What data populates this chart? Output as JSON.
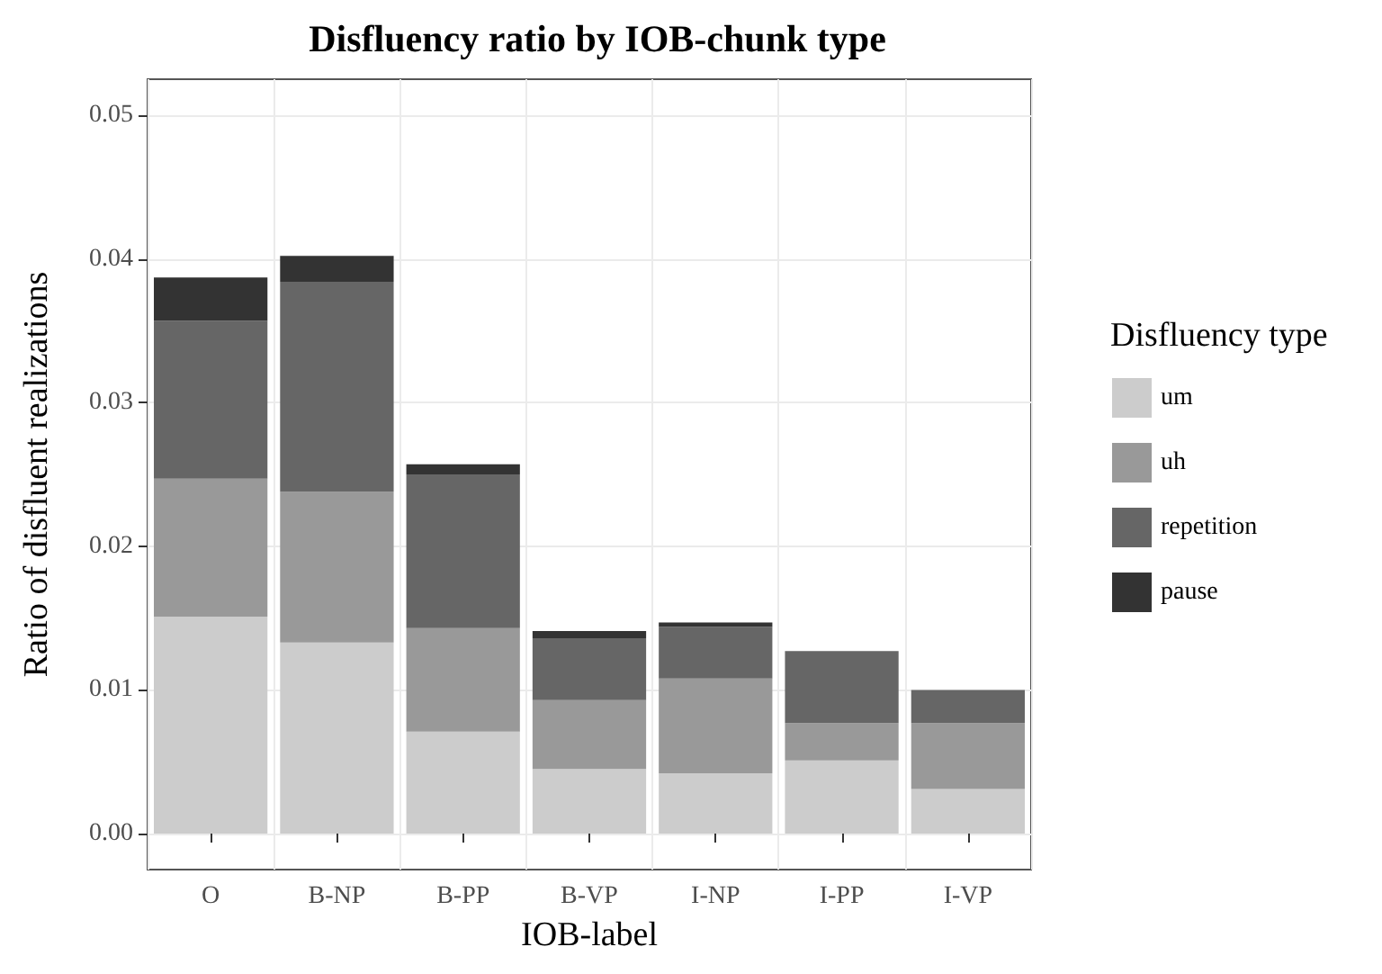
{
  "chart_data": {
    "type": "bar",
    "title": "Disfluency ratio by IOB-chunk type",
    "xlabel": "IOB-label",
    "ylabel": "Ratio of disfluent realizations",
    "legend_title": "Disfluency type",
    "categories": [
      "O",
      "B-NP",
      "B-PP",
      "B-VP",
      "I-NP",
      "I-PP",
      "I-VP"
    ],
    "stacked": true,
    "series": [
      {
        "name": "um",
        "color": "#cccccc",
        "values": [
          0.0151,
          0.0133,
          0.0071,
          0.0045,
          0.0042,
          0.0051,
          0.0031
        ]
      },
      {
        "name": "uh",
        "color": "#999999",
        "values": [
          0.0096,
          0.0105,
          0.0072,
          0.0048,
          0.0066,
          0.0026,
          0.0046
        ]
      },
      {
        "name": "repetition",
        "color": "#666666",
        "values": [
          0.011,
          0.0146,
          0.0107,
          0.0043,
          0.0036,
          0.005,
          0.0023
        ]
      },
      {
        "name": "pause",
        "color": "#333333",
        "values": [
          0.003,
          0.0018,
          0.0007,
          0.0005,
          0.0003,
          0,
          0
        ]
      }
    ],
    "ylim": [
      -0.0025,
      0.0525
    ],
    "yticks": [
      {
        "value": 0,
        "label": "0.00"
      },
      {
        "value": 0.01,
        "label": "0.01"
      },
      {
        "value": 0.02,
        "label": "0.02"
      },
      {
        "value": 0.03,
        "label": "0.03"
      },
      {
        "value": 0.04,
        "label": "0.04"
      },
      {
        "value": 0.05,
        "label": "0.05"
      }
    ],
    "grid": true,
    "legend": "right"
  }
}
